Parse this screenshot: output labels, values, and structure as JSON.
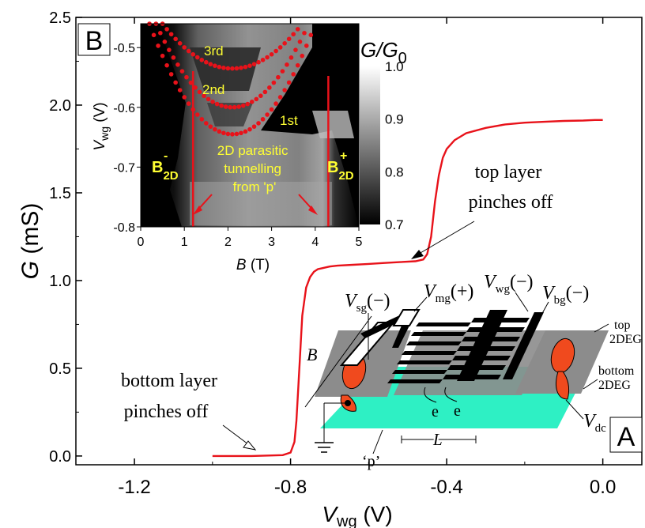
{
  "chart_data": [
    {
      "type": "line",
      "xlabel_main": "V",
      "xlabel_sub": "wg",
      "xlabel_unit": " (V)",
      "ylabel_main": "G",
      "ylabel_unit": " (mS)",
      "xlim": [
        -1.35,
        0.1
      ],
      "ylim": [
        -0.05,
        2.5
      ],
      "xticks": [
        -1.2,
        -0.8,
        -0.4,
        0.0
      ],
      "xtick_labels": [
        "-1.2",
        "-0.8",
        "-0.4",
        "0.0"
      ],
      "yticks": [
        0.0,
        0.5,
        1.0,
        1.5,
        2.0,
        2.5
      ],
      "ytick_labels": [
        "0.0",
        "0.5",
        "1.0",
        "1.5",
        "2.0",
        "2.5"
      ],
      "series": [
        {
          "color": "#e8121a",
          "x": [
            -1.0,
            -0.9,
            -0.82,
            -0.8,
            -0.79,
            -0.785,
            -0.78,
            -0.77,
            -0.76,
            -0.75,
            -0.74,
            -0.73,
            -0.72,
            -0.7,
            -0.68,
            -0.64,
            -0.6,
            -0.56,
            -0.52,
            -0.48,
            -0.46,
            -0.45,
            -0.44,
            -0.43,
            -0.42,
            -0.41,
            -0.4,
            -0.38,
            -0.35,
            -0.3,
            -0.25,
            -0.2,
            -0.15,
            -0.1,
            -0.05,
            -0.02,
            0.0
          ],
          "y": [
            0.0,
            0.0,
            0.005,
            0.02,
            0.08,
            0.2,
            0.4,
            0.8,
            0.96,
            1.02,
            1.05,
            1.065,
            1.07,
            1.08,
            1.085,
            1.09,
            1.095,
            1.1,
            1.105,
            1.11,
            1.12,
            1.15,
            1.25,
            1.45,
            1.6,
            1.7,
            1.75,
            1.8,
            1.84,
            1.87,
            1.89,
            1.9,
            1.905,
            1.91,
            1.912,
            1.915,
            1.915
          ]
        }
      ],
      "annotations": {
        "top_layer_line1": "top layer",
        "top_layer_line2": "pinches off",
        "bottom_layer_line1": "bottom layer",
        "bottom_layer_line2": "pinches off"
      },
      "panel_label": "A"
    },
    {
      "type": "heatmap",
      "panel_label": "B",
      "xlabel_main": "B",
      "xlabel_unit": " (T)",
      "ylabel_main": "V",
      "ylabel_sub": "wg",
      "ylabel_unit": " (V)",
      "xlim": [
        0,
        5
      ],
      "ylim": [
        -0.8,
        -0.46
      ],
      "xticks": [
        0,
        1,
        2,
        3,
        4,
        5
      ],
      "xtick_labels": [
        "0",
        "1",
        "2",
        "3",
        "4",
        "5"
      ],
      "yticks": [
        -0.5,
        -0.6,
        -0.7,
        -0.8
      ],
      "ytick_labels": [
        "-0.5",
        "-0.6",
        "-0.7",
        "-0.8"
      ],
      "colorbar": {
        "label_main": "G/G",
        "label_sub": "0",
        "ticks": [
          1.0,
          0.9,
          0.8,
          0.7
        ],
        "tick_labels": [
          "1.0",
          "0.9",
          "0.8",
          "0.7"
        ],
        "range": [
          0.7,
          1.0
        ]
      },
      "lines": [
        {
          "name": "B2D-",
          "x": 1.2
        },
        {
          "name": "B2D+",
          "x": 4.3
        }
      ],
      "line_labels": {
        "minus_main": "B",
        "minus_sub": "2D",
        "minus_sup": "-",
        "plus_main": "B",
        "plus_sub": "2D",
        "plus_sup": "+"
      },
      "subband_labels": [
        "3rd",
        "2nd",
        "1st"
      ],
      "inset_text": [
        "2D parasitic",
        "tunnelling",
        "from  'p'"
      ]
    }
  ],
  "device": {
    "labels": {
      "vsg": "V",
      "vsg_sub": "sg",
      "vsg_sign": "(−)",
      "vmg": "V",
      "vmg_sub": "mg",
      "vmg_sign": "(+)",
      "vwg": "V",
      "vwg_sub": "wg",
      "vwg_sign": "(−)",
      "vbg": "V",
      "vbg_sub": "bg",
      "vbg_sign": "(−)",
      "vdc": "V",
      "vdc_sub": "dc",
      "b": "B",
      "l": "L",
      "p": "‘p’",
      "e1": "e",
      "e2": "e",
      "top1": "top",
      "top2": "2DEG",
      "bottom1": "bottom",
      "bottom2": "2DEG"
    },
    "colors": {
      "top_layer": "#8c8c8c",
      "bottom_layer": "#2ef0c4",
      "contact": "#f04a1e"
    }
  }
}
